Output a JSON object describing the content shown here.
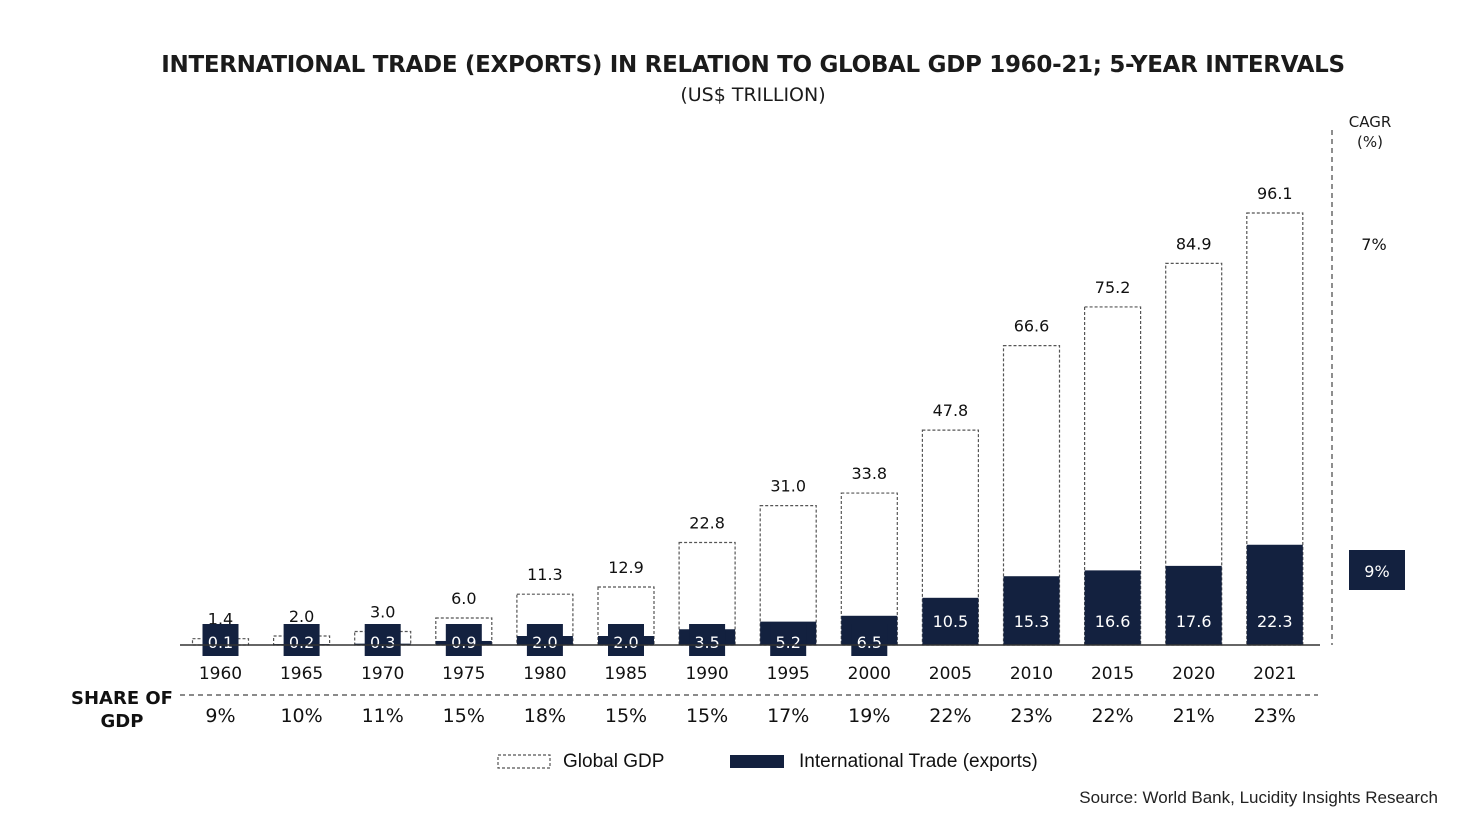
{
  "chart_data": {
    "type": "bar",
    "title": "INTERNATIONAL TRADE (EXPORTS) IN RELATION TO GLOBAL GDP 1960-21; 5-YEAR INTERVALS",
    "subtitle": "(US$ TRILLION)",
    "categories": [
      "1960",
      "1965",
      "1970",
      "1975",
      "1980",
      "1985",
      "1990",
      "1995",
      "2000",
      "2005",
      "2010",
      "2015",
      "2020",
      "2021"
    ],
    "series": [
      {
        "name": "Global GDP",
        "values": [
          1.4,
          2.0,
          3.0,
          6.0,
          11.3,
          12.9,
          22.8,
          31.0,
          33.8,
          47.8,
          66.6,
          75.2,
          84.9,
          96.1
        ],
        "labels": [
          "1.4",
          "2.0",
          "3.0",
          "6.0",
          "11.3",
          "12.9",
          "22.8",
          "31.0",
          "33.8",
          "47.8",
          "66.6",
          "75.2",
          "84.9",
          "96.1"
        ]
      },
      {
        "name": "International Trade (exports)",
        "values": [
          0.1,
          0.2,
          0.3,
          0.9,
          2.0,
          2.0,
          3.5,
          5.2,
          6.5,
          10.5,
          15.3,
          16.6,
          17.6,
          22.3
        ],
        "labels": [
          "0.1",
          "0.2",
          "0.3",
          "0.9",
          "2.0",
          "2.0",
          "3.5",
          "5.2",
          "6.5",
          "10.5",
          "15.3",
          "16.6",
          "17.6",
          "22.3"
        ]
      }
    ],
    "share_label": [
      "SHARE OF",
      "GDP"
    ],
    "share_of_gdp": [
      "9%",
      "10%",
      "11%",
      "15%",
      "18%",
      "15%",
      "15%",
      "17%",
      "19%",
      "22%",
      "23%",
      "22%",
      "21%",
      "23%"
    ],
    "cagr_header": [
      "CAGR",
      "(%)"
    ],
    "cagr": {
      "gdp": "7%",
      "trade": "9%"
    },
    "ylim": [
      0,
      100
    ],
    "legend": {
      "position": "bottom"
    },
    "colors": {
      "trade": "#13213f",
      "gdp_border": "#555555"
    }
  },
  "source": "Source: World Bank, Lucidity Insights Research"
}
